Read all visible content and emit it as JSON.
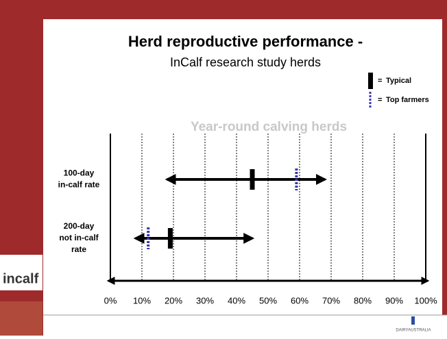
{
  "chart_data": {
    "type": "range",
    "title": "Herd reproductive performance -",
    "subtitle": "InCalf research study herds",
    "annotation": "Year-round calving herds",
    "categories": [
      [
        "100-day",
        "in-calf rate"
      ],
      [
        "200-day",
        "not in-calf",
        "rate"
      ]
    ],
    "ranges": [
      [
        18,
        68
      ],
      [
        8,
        45
      ]
    ],
    "series": [
      {
        "name": "Typical",
        "color": "#000000",
        "values": [
          45,
          19
        ]
      },
      {
        "name": "Top farmers",
        "color": "#3535b0",
        "values": [
          59,
          12
        ]
      }
    ],
    "xlim": [
      0,
      100
    ],
    "xticks": [
      {
        "value": 0,
        "label": "0%"
      },
      {
        "value": 10,
        "label": "10%"
      },
      {
        "value": 20,
        "label": "20%"
      },
      {
        "value": 30,
        "label": "30%"
      },
      {
        "value": 40,
        "label": "40%"
      },
      {
        "value": 50,
        "label": "50%"
      },
      {
        "value": 60,
        "label": "60%"
      },
      {
        "value": 70,
        "label": "70%"
      },
      {
        "value": 80,
        "label": "80%"
      },
      {
        "value": 90,
        "label": "90%"
      },
      {
        "value": 100,
        "label": "100%"
      }
    ],
    "grid": true,
    "legend": {
      "position": "top-right",
      "separator": "="
    }
  },
  "branding": {
    "left_logo": "incalf",
    "right_logo": "DAIRYAUSTRALIA"
  }
}
